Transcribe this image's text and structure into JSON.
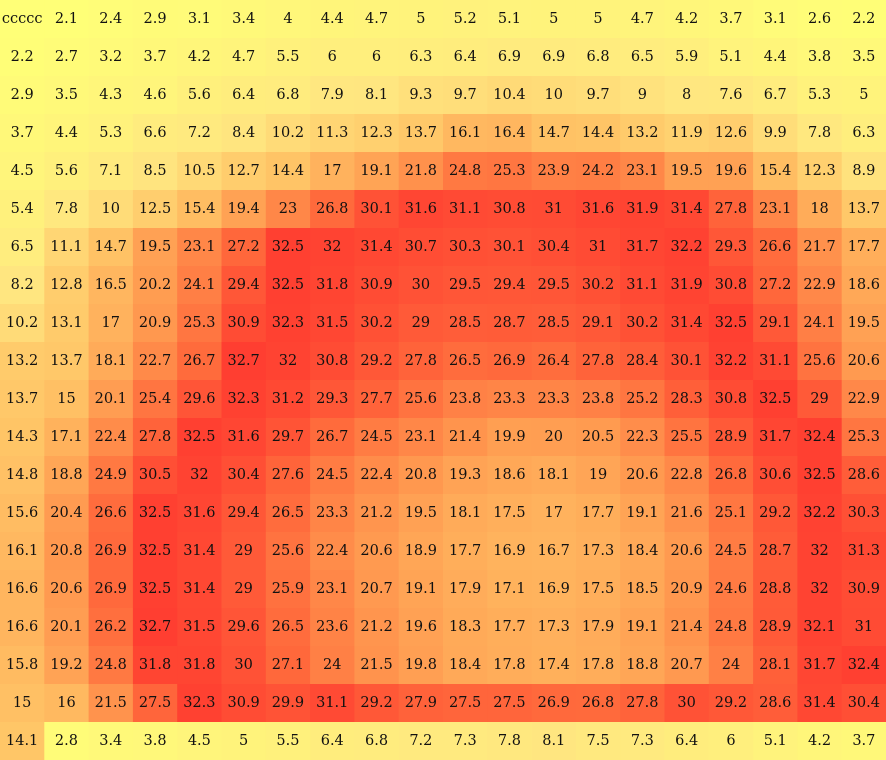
{
  "chart_data": {
    "type": "heatmap",
    "title": "",
    "xlabel": "",
    "ylabel": "",
    "rows": 20,
    "cols": 20,
    "labels": [
      [
        "ccccc",
        "2.1",
        "2.4",
        "2.9",
        "3.1",
        "3.4",
        "4",
        "4.4",
        "4.7",
        "5",
        "5.2",
        "5.1",
        "5",
        "5",
        "4.7",
        "4.2",
        "3.7",
        "3.1",
        "2.6",
        "2.2"
      ],
      [
        "2.2",
        "2.7",
        "3.2",
        "3.7",
        "4.2",
        "4.7",
        "5.5",
        "6",
        "6",
        "6.3",
        "6.4",
        "6.9",
        "6.9",
        "6.8",
        "6.5",
        "5.9",
        "5.1",
        "4.4",
        "3.8",
        "3.5"
      ],
      [
        "2.9",
        "3.5",
        "4.3",
        "4.6",
        "5.6",
        "6.4",
        "6.8",
        "7.9",
        "8.1",
        "9.3",
        "9.7",
        "10.4",
        "10",
        "9.7",
        "9",
        "8",
        "7.6",
        "6.7",
        "5.3",
        "5"
      ],
      [
        "3.7",
        "4.4",
        "5.3",
        "6.6",
        "7.2",
        "8.4",
        "10.2",
        "11.3",
        "12.3",
        "13.7",
        "16.1",
        "16.4",
        "14.7",
        "14.4",
        "13.2",
        "11.9",
        "12.6",
        "9.9",
        "7.8",
        "6.3"
      ],
      [
        "4.5",
        "5.6",
        "7.1",
        "8.5",
        "10.5",
        "12.7",
        "14.4",
        "17",
        "19.1",
        "21.8",
        "24.8",
        "25.3",
        "23.9",
        "24.2",
        "23.1",
        "19.5",
        "19.6",
        "15.4",
        "12.3",
        "8.9"
      ],
      [
        "5.4",
        "7.8",
        "10",
        "12.5",
        "15.4",
        "19.4",
        "23",
        "26.8",
        "30.1",
        "31.6",
        "31.1",
        "30.8",
        "31",
        "31.6",
        "31.9",
        "31.4",
        "27.8",
        "23.1",
        "18",
        "13.7"
      ],
      [
        "6.5",
        "11.1",
        "14.7",
        "19.5",
        "23.1",
        "27.2",
        "32.5",
        "32",
        "31.4",
        "30.7",
        "30.3",
        "30.1",
        "30.4",
        "31",
        "31.7",
        "32.2",
        "29.3",
        "26.6",
        "21.7",
        "17.7"
      ],
      [
        "8.2",
        "12.8",
        "16.5",
        "20.2",
        "24.1",
        "29.4",
        "32.5",
        "31.8",
        "30.9",
        "30",
        "29.5",
        "29.4",
        "29.5",
        "30.2",
        "31.1",
        "31.9",
        "30.8",
        "27.2",
        "22.9",
        "18.6"
      ],
      [
        "10.2",
        "13.1",
        "17",
        "20.9",
        "25.3",
        "30.9",
        "32.3",
        "31.5",
        "30.2",
        "29",
        "28.5",
        "28.7",
        "28.5",
        "29.1",
        "30.2",
        "31.4",
        "32.5",
        "29.1",
        "24.1",
        "19.5"
      ],
      [
        "13.2",
        "13.7",
        "18.1",
        "22.7",
        "26.7",
        "32.7",
        "32",
        "30.8",
        "29.2",
        "27.8",
        "26.5",
        "26.9",
        "26.4",
        "27.8",
        "28.4",
        "30.1",
        "32.2",
        "31.1",
        "25.6",
        "20.6"
      ],
      [
        "13.7",
        "15",
        "20.1",
        "25.4",
        "29.6",
        "32.3",
        "31.2",
        "29.3",
        "27.7",
        "25.6",
        "23.8",
        "23.3",
        "23.3",
        "23.8",
        "25.2",
        "28.3",
        "30.8",
        "32.5",
        "29",
        "22.9"
      ],
      [
        "14.3",
        "17.1",
        "22.4",
        "27.8",
        "32.5",
        "31.6",
        "29.7",
        "26.7",
        "24.5",
        "23.1",
        "21.4",
        "19.9",
        "20",
        "20.5",
        "22.3",
        "25.5",
        "28.9",
        "31.7",
        "32.4",
        "25.3"
      ],
      [
        "14.8",
        "18.8",
        "24.9",
        "30.5",
        "32",
        "30.4",
        "27.6",
        "24.5",
        "22.4",
        "20.8",
        "19.3",
        "18.6",
        "18.1",
        "19",
        "20.6",
        "22.8",
        "26.8",
        "30.6",
        "32.5",
        "28.6"
      ],
      [
        "15.6",
        "20.4",
        "26.6",
        "32.5",
        "31.6",
        "29.4",
        "26.5",
        "23.3",
        "21.2",
        "19.5",
        "18.1",
        "17.5",
        "17",
        "17.7",
        "19.1",
        "21.6",
        "25.1",
        "29.2",
        "32.2",
        "30.3"
      ],
      [
        "16.1",
        "20.8",
        "26.9",
        "32.5",
        "31.4",
        "29",
        "25.6",
        "22.4",
        "20.6",
        "18.9",
        "17.7",
        "16.9",
        "16.7",
        "17.3",
        "18.4",
        "20.6",
        "24.5",
        "28.7",
        "32",
        "31.3"
      ],
      [
        "16.6",
        "20.6",
        "26.9",
        "32.5",
        "31.4",
        "29",
        "25.9",
        "23.1",
        "20.7",
        "19.1",
        "17.9",
        "17.1",
        "16.9",
        "17.5",
        "18.5",
        "20.9",
        "24.6",
        "28.8",
        "32",
        "30.9"
      ],
      [
        "16.6",
        "20.1",
        "26.2",
        "32.7",
        "31.5",
        "29.6",
        "26.5",
        "23.6",
        "21.2",
        "19.6",
        "18.3",
        "17.7",
        "17.3",
        "17.9",
        "19.1",
        "21.4",
        "24.8",
        "28.9",
        "32.1",
        "31"
      ],
      [
        "15.8",
        "19.2",
        "24.8",
        "31.8",
        "31.8",
        "30",
        "27.1",
        "24",
        "21.5",
        "19.8",
        "18.4",
        "17.8",
        "17.4",
        "17.8",
        "18.8",
        "20.7",
        "24",
        "28.1",
        "31.7",
        "32.4"
      ],
      [
        "15",
        "16",
        "21.5",
        "27.5",
        "32.3",
        "30.9",
        "29.9",
        "31.1",
        "29.2",
        "27.9",
        "27.5",
        "27.5",
        "26.9",
        "26.8",
        "27.8",
        "30",
        "29.2",
        "28.6",
        "31.4",
        "30.4"
      ],
      [
        "14.1",
        "2.8",
        "3.4",
        "3.8",
        "4.5",
        "5",
        "5.5",
        "6.4",
        "6.8",
        "7.2",
        "7.3",
        "7.8",
        "8.1",
        "7.5",
        "7.3",
        "6.4",
        "6",
        "5.1",
        "4.2",
        "3.7"
      ]
    ],
    "colorscale": {
      "min": 2,
      "max": 33,
      "stops": [
        "#ffff77",
        "#ffe680",
        "#ffc466",
        "#ff9a50",
        "#ff6a3c",
        "#ff3c30"
      ]
    }
  }
}
